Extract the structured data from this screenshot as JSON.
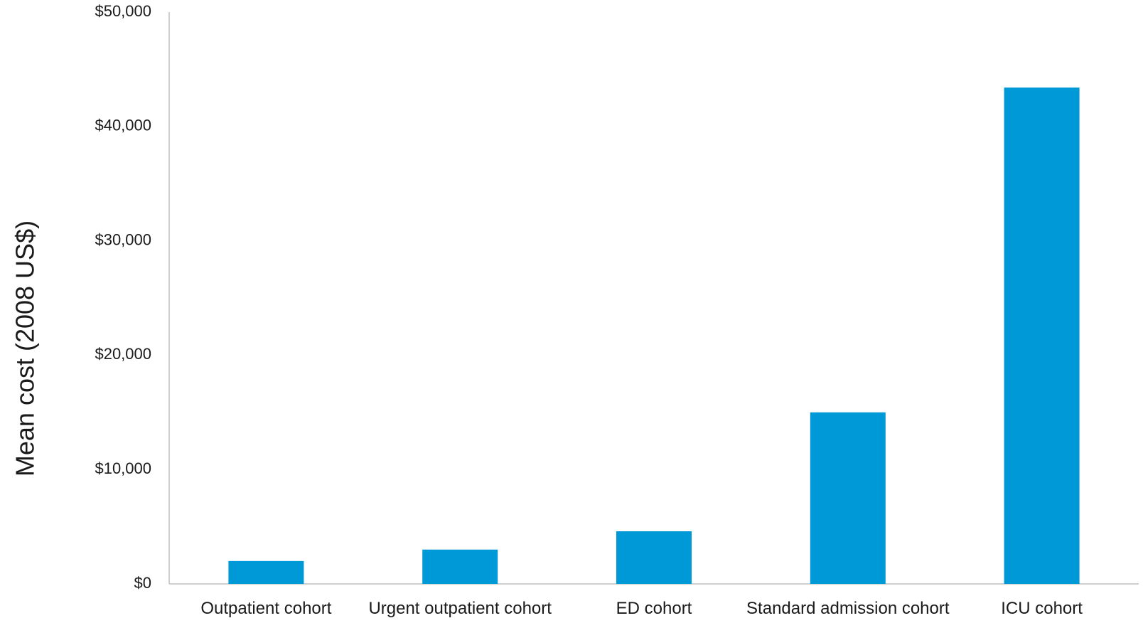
{
  "chart_data": {
    "type": "bar",
    "title": "",
    "xlabel": "",
    "ylabel": "Mean cost (2008 US$)",
    "categories": [
      "Outpatient cohort",
      "Urgent outpatient cohort",
      "ED cohort",
      "Standard admission cohort",
      "ICU cohort"
    ],
    "values": [
      2000,
      3000,
      4600,
      15000,
      43400
    ],
    "ylim": [
      0,
      50000
    ],
    "yticks": [
      0,
      10000,
      20000,
      30000,
      40000,
      50000
    ],
    "ytick_labels": [
      "$0",
      "$10,000",
      "$20,000",
      "$30,000",
      "$40,000",
      "$50,000"
    ],
    "grid": false,
    "legend": "none",
    "colors": {
      "bar": "#0099d8",
      "axis": "#bfbfbf",
      "text": "#1a1a1a"
    }
  }
}
